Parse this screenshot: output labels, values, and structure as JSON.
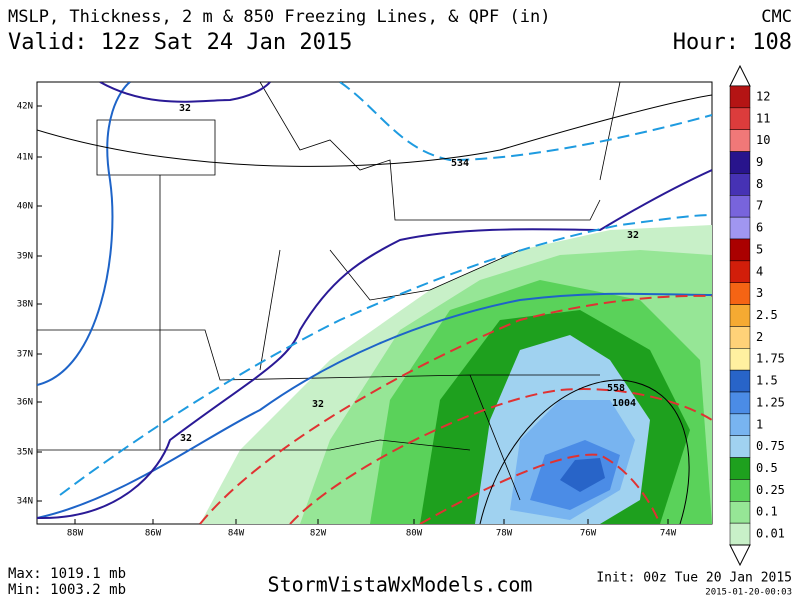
{
  "header": {
    "title": "MSLP, Thickness, 2 m & 850 Freezing Lines, & QPF (in)",
    "model": "CMC",
    "valid": "Valid: 12z Sat 24 Jan 2015",
    "hour": "Hour: 108"
  },
  "map": {
    "lat_labels": [
      "42N",
      "41N",
      "40N",
      "39N",
      "38N",
      "37N",
      "36N",
      "35N",
      "34N"
    ],
    "lon_labels": [
      "88W",
      "86W",
      "84W",
      "82W",
      "80W",
      "78W",
      "76W",
      "74W"
    ],
    "contour_labels": [
      "32",
      "534",
      "32",
      "32",
      "32",
      "558",
      "1004"
    ]
  },
  "legend": {
    "levels": [
      {
        "label": "12",
        "color": "#b41414"
      },
      {
        "label": "11",
        "color": "#dc3c3c"
      },
      {
        "label": "10",
        "color": "#f07878"
      },
      {
        "label": "9",
        "color": "#28148c"
      },
      {
        "label": "8",
        "color": "#4632b4"
      },
      {
        "label": "7",
        "color": "#7864dc"
      },
      {
        "label": "6",
        "color": "#a096f0"
      },
      {
        "label": "5",
        "color": "#aa0000"
      },
      {
        "label": "4",
        "color": "#d21e0a"
      },
      {
        "label": "3",
        "color": "#f56414"
      },
      {
        "label": "2.5",
        "color": "#f5aa32"
      },
      {
        "label": "2",
        "color": "#ffd278"
      },
      {
        "label": "1.75",
        "color": "#fff0a0"
      },
      {
        "label": "1.5",
        "color": "#2864c8"
      },
      {
        "label": "1.25",
        "color": "#4b8ce6"
      },
      {
        "label": "1",
        "color": "#78b4f0"
      },
      {
        "label": "0.75",
        "color": "#a0d2f0"
      },
      {
        "label": "0.5",
        "color": "#1ea01e"
      },
      {
        "label": "0.25",
        "color": "#5ad25a"
      },
      {
        "label": "0.1",
        "color": "#96e696"
      },
      {
        "label": "0.01",
        "color": "#c8f0c8"
      }
    ]
  },
  "footer": {
    "max": "Max: 1019.1 mb",
    "min": "Min: 1003.2 mb",
    "site": "StormVistaWxModels.com",
    "init": "Init: 00z Tue 20 Jan 2015",
    "stamp": "2015-01-20-00:03"
  }
}
